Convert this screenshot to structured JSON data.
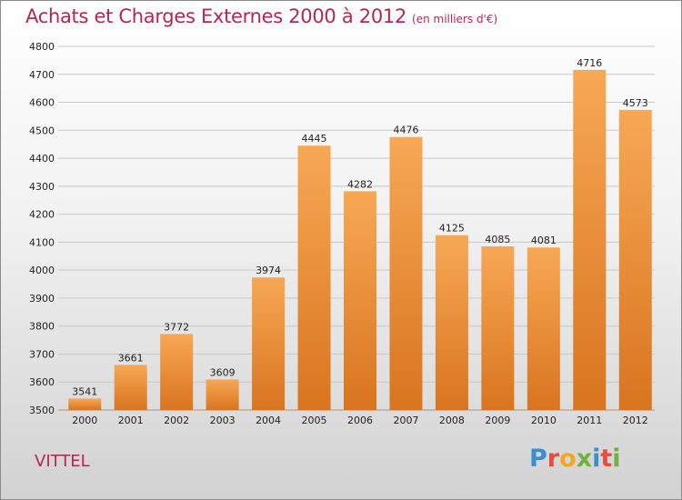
{
  "header": {
    "title": "Achats et Charges Externes 2000 à 2012",
    "subtitle": "(en milliers d'€)"
  },
  "footer": {
    "location": "VITTEL",
    "logo_letters": [
      "P",
      "r",
      "o",
      "x",
      "i",
      "t",
      "i"
    ],
    "logo_colors": [
      "#3a8fd1",
      "#e84c3d",
      "#f5a623",
      "#6cb33f",
      "#3a8fd1",
      "#e84c3d",
      "#6cb33f"
    ]
  },
  "chart_data": {
    "type": "bar",
    "title": "Achats et Charges Externes 2000 à 2012",
    "subtitle": "(en milliers d'€)",
    "categories": [
      "2000",
      "2001",
      "2002",
      "2003",
      "2004",
      "2005",
      "2006",
      "2007",
      "2008",
      "2009",
      "2010",
      "2011",
      "2012"
    ],
    "values": [
      3541,
      3661,
      3772,
      3609,
      3974,
      4445,
      4282,
      4476,
      4125,
      4085,
      4081,
      4716,
      4573
    ],
    "ylim": [
      3500,
      4800
    ],
    "yticks": [
      3500,
      3600,
      3700,
      3800,
      3900,
      4000,
      4100,
      4200,
      4300,
      4400,
      4500,
      4600,
      4700,
      4800
    ],
    "grid": true,
    "bar_color_top": "#f7a855",
    "bar_color_bottom": "#d9741f"
  }
}
